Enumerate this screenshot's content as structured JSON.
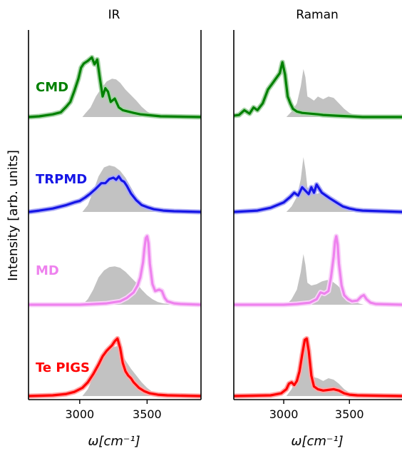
{
  "figure": {
    "ylabel": "Intensity [arb. units]"
  },
  "chart_data": [
    {
      "type": "line",
      "panel": "left",
      "title": "IR",
      "xlabel": "ω[cm⁻¹]",
      "xlim": [
        2620,
        3900
      ],
      "xticks": [
        3000,
        3500
      ],
      "grid": false,
      "series": [
        {
          "name": "CMD",
          "color": "#008000",
          "x": [
            2620,
            2700,
            2800,
            2860,
            2900,
            2930,
            2960,
            2990,
            3010,
            3030,
            3060,
            3090,
            3110,
            3130,
            3150,
            3170,
            3190,
            3210,
            3230,
            3260,
            3290,
            3320,
            3360,
            3400,
            3450,
            3500,
            3600,
            3900
          ],
          "y": [
            0.0,
            0.01,
            0.04,
            0.07,
            0.15,
            0.22,
            0.38,
            0.56,
            0.72,
            0.78,
            0.82,
            0.87,
            0.77,
            0.84,
            0.56,
            0.3,
            0.42,
            0.37,
            0.22,
            0.27,
            0.14,
            0.1,
            0.08,
            0.06,
            0.04,
            0.03,
            0.01,
            0.0
          ],
          "reference": {
            "x": [
              3020,
              3040,
              3080,
              3120,
              3160,
              3200,
              3240,
              3270,
              3300,
              3340,
              3380,
              3420,
              3460,
              3500,
              3540,
              3580,
              3620
            ],
            "y": [
              0.0,
              0.05,
              0.14,
              0.3,
              0.42,
              0.52,
              0.56,
              0.55,
              0.5,
              0.4,
              0.32,
              0.24,
              0.15,
              0.08,
              0.04,
              0.02,
              0.0
            ]
          }
        },
        {
          "name": "TRPMD",
          "color": "#1515e6",
          "x": [
            2620,
            2700,
            2800,
            2900,
            2960,
            3000,
            3040,
            3080,
            3120,
            3160,
            3190,
            3220,
            3250,
            3270,
            3290,
            3310,
            3330,
            3350,
            3380,
            3420,
            3460,
            3500,
            3550,
            3620,
            3700,
            3900
          ],
          "y": [
            0.0,
            0.02,
            0.05,
            0.1,
            0.14,
            0.16,
            0.21,
            0.27,
            0.34,
            0.42,
            0.42,
            0.48,
            0.5,
            0.47,
            0.52,
            0.46,
            0.44,
            0.38,
            0.27,
            0.17,
            0.1,
            0.07,
            0.04,
            0.02,
            0.01,
            0.0
          ],
          "reference": {
            "x": [
              3020,
              3060,
              3100,
              3140,
              3180,
              3220,
              3260,
              3300,
              3340,
              3380,
              3420,
              3460,
              3500,
              3540,
              3580,
              3620
            ],
            "y": [
              0.0,
              0.1,
              0.3,
              0.52,
              0.65,
              0.68,
              0.66,
              0.6,
              0.5,
              0.36,
              0.22,
              0.14,
              0.08,
              0.04,
              0.02,
              0.0
            ]
          }
        },
        {
          "name": "MD",
          "color": "#ee82ee",
          "x": [
            2620,
            3000,
            3200,
            3300,
            3350,
            3400,
            3430,
            3450,
            3470,
            3480,
            3490,
            3500,
            3510,
            3520,
            3540,
            3560,
            3590,
            3610,
            3630,
            3650,
            3700,
            3750,
            3900
          ],
          "y": [
            0.0,
            0.0,
            0.02,
            0.05,
            0.1,
            0.18,
            0.28,
            0.4,
            0.62,
            0.82,
            0.97,
            1.0,
            0.9,
            0.6,
            0.3,
            0.2,
            0.22,
            0.2,
            0.1,
            0.05,
            0.02,
            0.01,
            0.0
          ],
          "reference": {
            "x": [
              3020,
              3060,
              3100,
              3140,
              3180,
              3220,
              3260,
              3300,
              3340,
              3380,
              3420,
              3460,
              3500,
              3540,
              3580,
              3620,
              3660,
              3720
            ],
            "y": [
              0.0,
              0.08,
              0.22,
              0.4,
              0.5,
              0.55,
              0.56,
              0.54,
              0.48,
              0.4,
              0.32,
              0.22,
              0.14,
              0.08,
              0.04,
              0.02,
              0.01,
              0.0
            ]
          }
        },
        {
          "name": "Te PIGS",
          "color": "#ff0000",
          "x": [
            2620,
            2800,
            2900,
            2960,
            3020,
            3060,
            3100,
            3140,
            3170,
            3200,
            3220,
            3240,
            3260,
            3280,
            3300,
            3320,
            3340,
            3360,
            3380,
            3400,
            3440,
            3480,
            3520,
            3580,
            3650,
            3900
          ],
          "y": [
            0.0,
            0.01,
            0.03,
            0.06,
            0.12,
            0.2,
            0.32,
            0.46,
            0.58,
            0.66,
            0.7,
            0.74,
            0.8,
            0.84,
            0.7,
            0.48,
            0.36,
            0.3,
            0.26,
            0.2,
            0.12,
            0.07,
            0.04,
            0.02,
            0.01,
            0.0
          ],
          "reference": {
            "x": [
              3020,
              3060,
              3100,
              3140,
              3180,
              3220,
              3260,
              3280,
              3300,
              3340,
              3380,
              3420,
              3460,
              3500,
              3540,
              3580,
              3620
            ],
            "y": [
              0.0,
              0.1,
              0.28,
              0.48,
              0.62,
              0.68,
              0.72,
              0.73,
              0.68,
              0.52,
              0.4,
              0.3,
              0.2,
              0.12,
              0.06,
              0.02,
              0.0
            ]
          }
        }
      ]
    },
    {
      "type": "line",
      "panel": "right",
      "title": "Raman",
      "xlabel": "ω[cm⁻¹]",
      "xlim": [
        2620,
        3900
      ],
      "xticks": [
        3000,
        3500
      ],
      "grid": false,
      "series": [
        {
          "name": "CMD",
          "color": "#008000",
          "x": [
            2620,
            2660,
            2700,
            2740,
            2770,
            2800,
            2840,
            2880,
            2910,
            2940,
            2970,
            2990,
            3010,
            3030,
            3050,
            3070,
            3100,
            3140,
            3200,
            3260,
            3300,
            3400,
            3500,
            3600,
            3900
          ],
          "y": [
            0.02,
            0.03,
            0.1,
            0.05,
            0.14,
            0.1,
            0.2,
            0.4,
            0.48,
            0.56,
            0.64,
            0.8,
            0.62,
            0.3,
            0.2,
            0.12,
            0.08,
            0.06,
            0.05,
            0.04,
            0.03,
            0.02,
            0.01,
            0.0,
            0.0
          ],
          "reference": {
            "x": [
              3020,
              3060,
              3100,
              3130,
              3150,
              3165,
              3180,
              3200,
              3230,
              3260,
              3300,
              3340,
              3380,
              3420,
              3460,
              3500,
              3540,
              3580
            ],
            "y": [
              0.0,
              0.08,
              0.2,
              0.45,
              0.7,
              0.58,
              0.3,
              0.28,
              0.24,
              0.3,
              0.26,
              0.3,
              0.28,
              0.2,
              0.12,
              0.06,
              0.03,
              0.0
            ]
          }
        },
        {
          "name": "TRPMD",
          "color": "#1515e6",
          "x": [
            2620,
            2800,
            2900,
            3000,
            3050,
            3080,
            3110,
            3140,
            3170,
            3190,
            3210,
            3230,
            3250,
            3270,
            3290,
            3320,
            3350,
            3400,
            3450,
            3500,
            3550,
            3600,
            3900
          ],
          "y": [
            0.0,
            0.02,
            0.06,
            0.14,
            0.22,
            0.28,
            0.24,
            0.36,
            0.3,
            0.26,
            0.36,
            0.28,
            0.4,
            0.34,
            0.28,
            0.24,
            0.2,
            0.14,
            0.08,
            0.05,
            0.03,
            0.02,
            0.0
          ],
          "reference": {
            "x": [
              3020,
              3060,
              3100,
              3130,
              3150,
              3165,
              3180,
              3210,
              3240,
              3280,
              3320,
              3360,
              3400,
              3440,
              3480,
              3520,
              3560,
              3600
            ],
            "y": [
              0.0,
              0.08,
              0.22,
              0.48,
              0.8,
              0.62,
              0.36,
              0.3,
              0.26,
              0.28,
              0.24,
              0.22,
              0.18,
              0.12,
              0.07,
              0.04,
              0.02,
              0.0
            ]
          }
        },
        {
          "name": "MD",
          "color": "#ee82ee",
          "x": [
            2620,
            3000,
            3100,
            3200,
            3250,
            3280,
            3310,
            3340,
            3360,
            3380,
            3390,
            3400,
            3410,
            3420,
            3440,
            3460,
            3490,
            3520,
            3560,
            3590,
            3610,
            3630,
            3660,
            3700,
            3900
          ],
          "y": [
            0.0,
            0.0,
            0.01,
            0.03,
            0.08,
            0.18,
            0.16,
            0.2,
            0.4,
            0.7,
            0.92,
            1.0,
            0.88,
            0.6,
            0.28,
            0.14,
            0.08,
            0.05,
            0.06,
            0.12,
            0.14,
            0.08,
            0.03,
            0.01,
            0.0
          ],
          "reference": {
            "x": [
              3020,
              3060,
              3100,
              3130,
              3150,
              3165,
              3180,
              3210,
              3250,
              3290,
              3330,
              3370,
              3410,
              3450,
              3490,
              3530,
              3570,
              3610
            ],
            "y": [
              0.0,
              0.08,
              0.22,
              0.48,
              0.74,
              0.58,
              0.32,
              0.28,
              0.3,
              0.34,
              0.36,
              0.34,
              0.28,
              0.2,
              0.12,
              0.06,
              0.02,
              0.0
            ]
          }
        },
        {
          "name": "Te PIGS",
          "color": "#ff0000",
          "x": [
            2620,
            2900,
            2980,
            3020,
            3040,
            3060,
            3080,
            3100,
            3120,
            3140,
            3160,
            3175,
            3190,
            3210,
            3230,
            3260,
            3300,
            3340,
            3380,
            3420,
            3460,
            3500,
            3560,
            3900
          ],
          "y": [
            0.0,
            0.01,
            0.04,
            0.1,
            0.18,
            0.2,
            0.16,
            0.22,
            0.36,
            0.6,
            0.82,
            0.84,
            0.66,
            0.3,
            0.14,
            0.1,
            0.08,
            0.09,
            0.1,
            0.08,
            0.04,
            0.02,
            0.01,
            0.0
          ],
          "reference": {
            "x": [
              3020,
              3060,
              3100,
              3130,
              3150,
              3170,
              3190,
              3220,
              3260,
              3300,
              3340,
              3380,
              3420,
              3460,
              3500,
              3540,
              3580
            ],
            "y": [
              0.0,
              0.1,
              0.28,
              0.52,
              0.8,
              0.84,
              0.5,
              0.28,
              0.26,
              0.22,
              0.26,
              0.24,
              0.18,
              0.1,
              0.05,
              0.02,
              0.0
            ]
          }
        }
      ]
    }
  ]
}
